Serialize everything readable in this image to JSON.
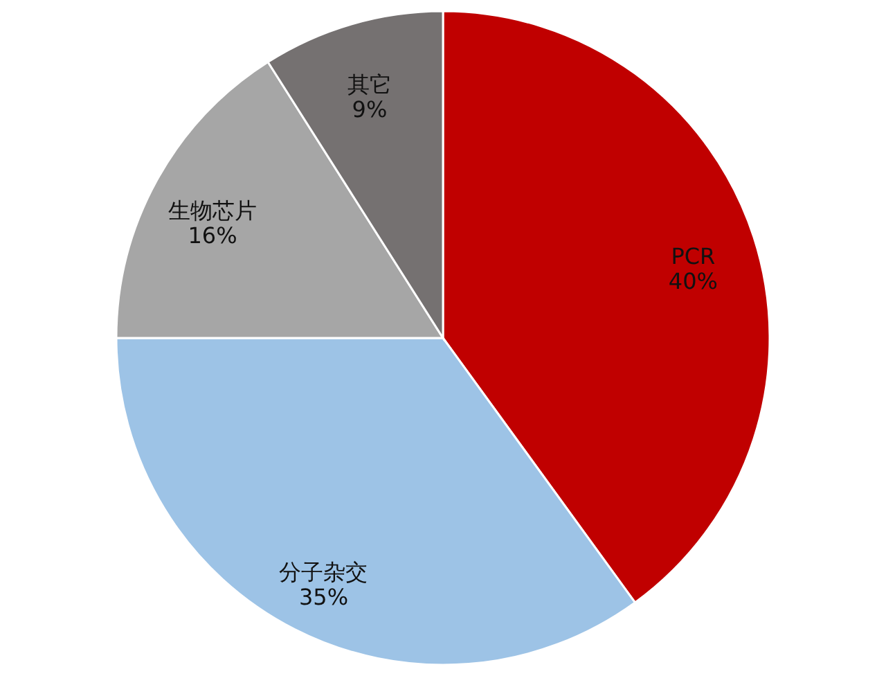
{
  "chart_data": {
    "type": "pie",
    "categories": [
      "PCR",
      "分子杂交",
      "生物芯片",
      "其它"
    ],
    "values": [
      40,
      35,
      16,
      9
    ],
    "value_labels": [
      "40%",
      "35%",
      "16%",
      "9%"
    ],
    "colors": [
      "#c00000",
      "#9dc3e6",
      "#a6a6a6",
      "#757171"
    ]
  }
}
